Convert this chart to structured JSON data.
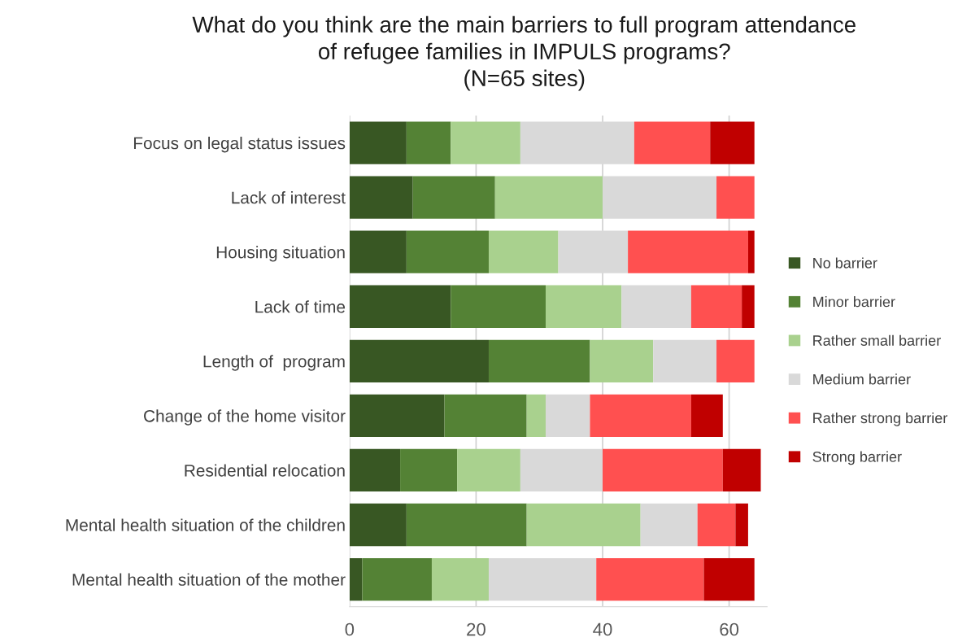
{
  "chart_data": {
    "type": "bar",
    "orientation": "horizontal",
    "stacked": true,
    "title": "What do you think are the main barriers to full program attendance\nof refugee families in IMPULS programs?\n(N=65 sites)",
    "categories": [
      "Focus on legal status issues",
      "Lack of interest",
      "Housing situation",
      "Lack of time",
      "Length of  program",
      "Change of the home visitor",
      "Residential relocation",
      "Mental health situation of the children",
      "Mental health situation of the mother"
    ],
    "series": [
      {
        "name": "No barrier",
        "color": "#385723",
        "values": [
          9,
          10,
          9,
          16,
          22,
          15,
          8,
          9,
          2
        ]
      },
      {
        "name": "Minor barrier",
        "color": "#548235",
        "values": [
          7,
          13,
          13,
          15,
          16,
          13,
          9,
          19,
          11
        ]
      },
      {
        "name": "Rather small barrier",
        "color": "#a9d18e",
        "values": [
          11,
          17,
          11,
          12,
          10,
          3,
          10,
          18,
          9
        ]
      },
      {
        "name": "Medium barrier",
        "color": "#d9d9d9",
        "values": [
          18,
          18,
          11,
          11,
          10,
          7,
          13,
          9,
          17
        ]
      },
      {
        "name": "Rather strong barrier",
        "color": "#ff5050",
        "values": [
          12,
          6,
          19,
          8,
          6,
          16,
          19,
          6,
          17
        ]
      },
      {
        "name": "Strong barrier",
        "color": "#c00000",
        "values": [
          7,
          0,
          1,
          2,
          0,
          5,
          6,
          2,
          8
        ]
      }
    ],
    "xlim": [
      0,
      66
    ],
    "xticks": [
      0,
      20,
      40,
      60
    ],
    "grid": "x",
    "legend": "right"
  }
}
